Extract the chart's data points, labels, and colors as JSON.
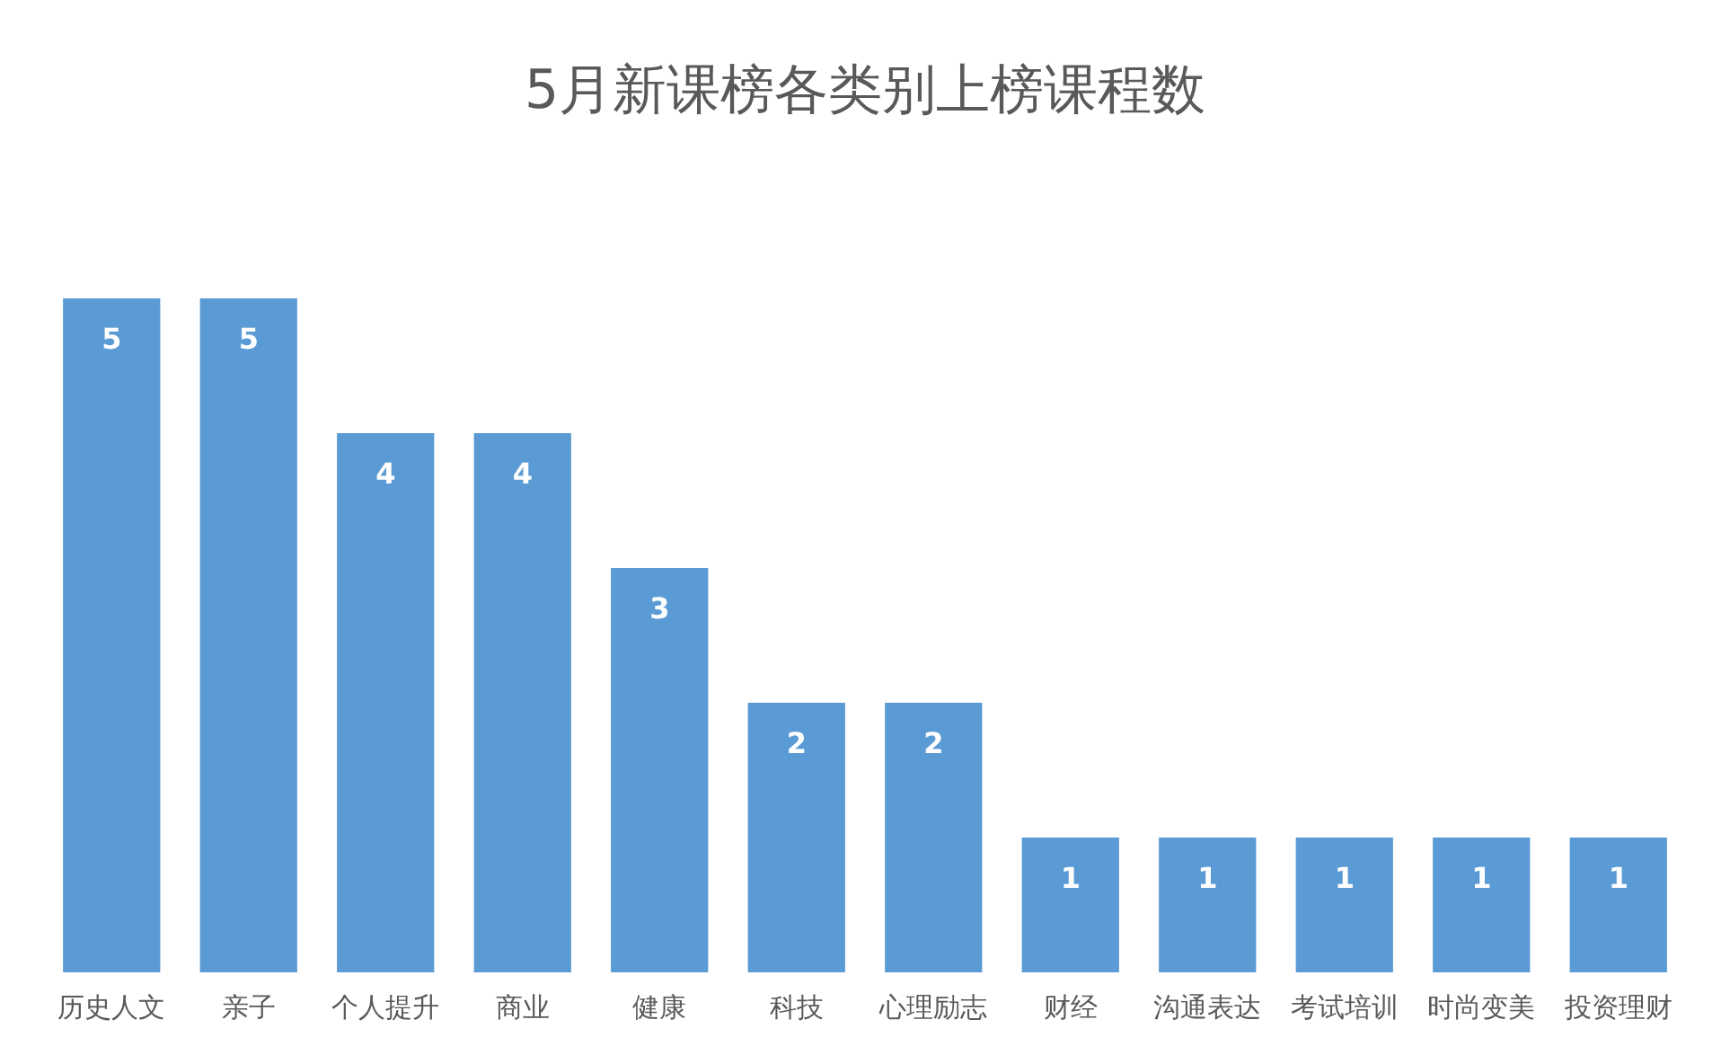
{
  "chart_data": {
    "type": "bar",
    "title": "5月新课榜各类别上榜课程数",
    "categories": [
      "历史人文",
      "亲子",
      "个人提升",
      "商业",
      "健康",
      "科技",
      "心理励志",
      "财经",
      "沟通表达",
      "考试培训",
      "时尚变美",
      "投资理财"
    ],
    "values": [
      5,
      5,
      4,
      4,
      3,
      2,
      2,
      1,
      1,
      1,
      1,
      1
    ],
    "color": "#5b9bd5",
    "data_labels": true
  }
}
